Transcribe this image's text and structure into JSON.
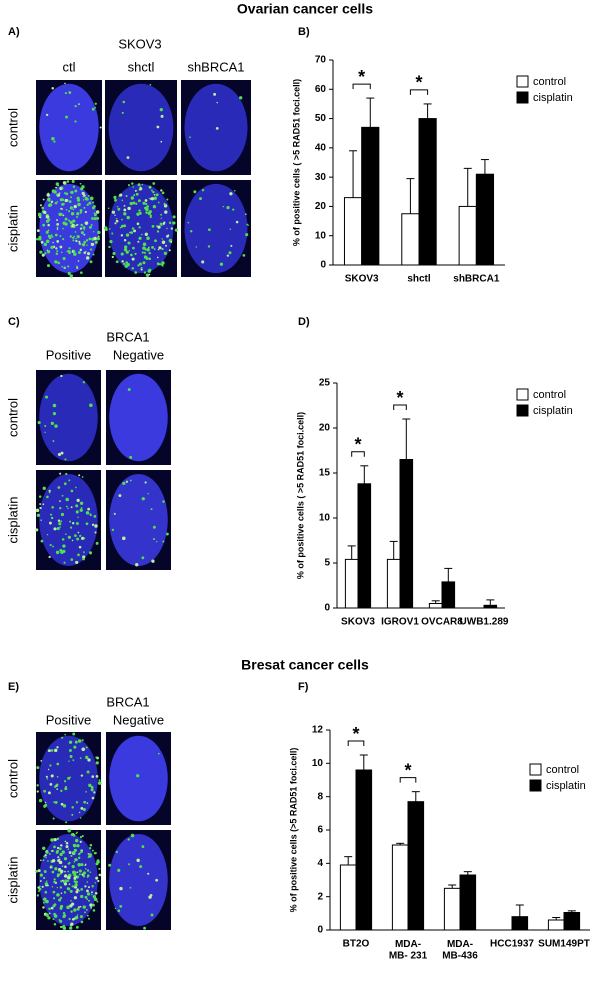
{
  "figure": {
    "title_top": "Ovarian cancer cells",
    "title_bottom": "Bresat cancer cells",
    "panel_A": {
      "label": "A)",
      "cell_line": "SKOV3",
      "columns": [
        "ctl",
        "shctl",
        "shBRCA1"
      ],
      "rows": [
        "control",
        "cisplatin"
      ]
    },
    "panel_C": {
      "label": "C)",
      "heading": "BRCA1",
      "columns": [
        "Positive",
        "Negative"
      ],
      "rows": [
        "control",
        "cisplatin"
      ]
    },
    "panel_E": {
      "label": "E)",
      "heading": "BRCA1",
      "columns": [
        "Positive",
        "Negative"
      ],
      "rows": [
        "control",
        "cisplatin"
      ]
    }
  },
  "chart_data": [
    {
      "type": "bar",
      "panel_label": "B)",
      "y_label": "% of positive cells ( >5 RAD51 foci.cell)",
      "categories": [
        "SKOV3",
        "shctl",
        "shBRCA1"
      ],
      "series": [
        {
          "name": "control",
          "color": "#ffffff",
          "values": [
            23,
            17.5,
            20
          ],
          "errors": [
            16,
            12,
            13
          ]
        },
        {
          "name": "cisplatin",
          "color": "#000000",
          "values": [
            47,
            50,
            31
          ],
          "errors": [
            10,
            5,
            5
          ]
        }
      ],
      "significance": [
        "*",
        "*",
        null
      ],
      "ylim": [
        0,
        70
      ],
      "yticks": [
        0,
        10,
        20,
        30,
        40,
        50,
        60,
        70
      ]
    },
    {
      "type": "bar",
      "panel_label": "D)",
      "y_label": "% of positive cells ( >5 RAD51 foci.cell)",
      "categories": [
        "SKOV3",
        "IGROV1",
        "OVCAR8",
        "UWB1.289"
      ],
      "series": [
        {
          "name": "control",
          "color": "#ffffff",
          "values": [
            5.4,
            5.4,
            0.5,
            0
          ],
          "errors": [
            1.5,
            2,
            0.3,
            0
          ]
        },
        {
          "name": "cisplatin",
          "color": "#000000",
          "values": [
            13.8,
            16.5,
            2.9,
            0.3
          ],
          "errors": [
            2,
            4.5,
            1.5,
            0.6
          ]
        }
      ],
      "significance": [
        "*",
        "*",
        null,
        null
      ],
      "ylim": [
        0,
        25
      ],
      "yticks": [
        0,
        5,
        10,
        15,
        20,
        25
      ]
    },
    {
      "type": "bar",
      "panel_label": "F)",
      "y_label": "% of positive cells (>5 RAD51 foci.cell)",
      "categories": [
        "BT2O",
        "MDA-\nMB- 231",
        "MDA-\nMB-436",
        "HCC1937",
        "SUM149PT"
      ],
      "series": [
        {
          "name": "control",
          "color": "#ffffff",
          "values": [
            3.9,
            5.1,
            2.5,
            0,
            0.6
          ],
          "errors": [
            0.5,
            0.1,
            0.2,
            0,
            0.15
          ]
        },
        {
          "name": "cisplatin",
          "color": "#000000",
          "values": [
            9.6,
            7.7,
            3.3,
            0.8,
            1.05
          ],
          "errors": [
            0.9,
            0.6,
            0.2,
            0.7,
            0.1
          ]
        }
      ],
      "significance": [
        "*",
        "*",
        null,
        null,
        null
      ],
      "ylim": [
        0,
        12
      ],
      "yticks": [
        0,
        2,
        4,
        6,
        8,
        10,
        12
      ]
    }
  ]
}
